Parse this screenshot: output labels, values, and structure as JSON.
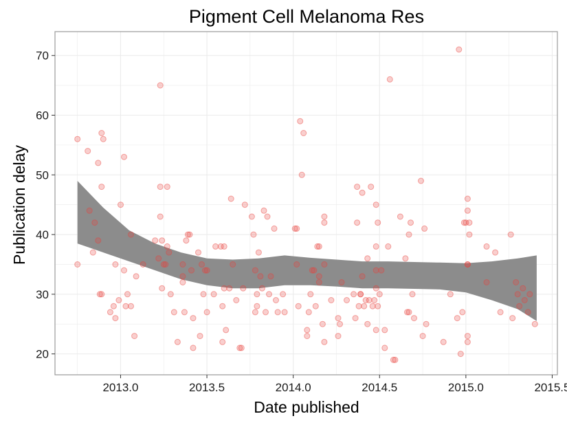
{
  "chart_data": {
    "type": "scatter",
    "title": "Pigment Cell Melanoma Res",
    "xlabel": "Date published",
    "ylabel": "Publication delay",
    "xlim": [
      2012.62,
      2015.53
    ],
    "ylim": [
      16.5,
      74.0
    ],
    "x_ticks": [
      2013.0,
      2013.5,
      2014.0,
      2014.5,
      2015.0,
      2015.5
    ],
    "x_tick_labels": [
      "2013.0",
      "2013.5",
      "2014.0",
      "2014.5",
      "2015.0",
      "2015.5"
    ],
    "y_ticks": [
      20,
      30,
      40,
      50,
      60,
      70
    ],
    "y_tick_labels": [
      "20",
      "30",
      "40",
      "50",
      "60",
      "70"
    ],
    "grid": true,
    "colors": {
      "point": "#e8413a",
      "band": "#8c8c8c",
      "grid": "#ebebeb",
      "border": "#9a9a9a"
    },
    "smooth_band": {
      "x": [
        2012.75,
        2012.9,
        2013.05,
        2013.2,
        2013.35,
        2013.5,
        2013.65,
        2013.8,
        2013.95,
        2014.1,
        2014.25,
        2014.4,
        2014.55,
        2014.7,
        2014.85,
        2015.0,
        2015.15,
        2015.3,
        2015.41
      ],
      "upper": [
        49.0,
        44.5,
        40.7,
        38.5,
        37.0,
        36.0,
        35.8,
        36.0,
        36.5,
        36.1,
        35.8,
        35.5,
        35.5,
        35.4,
        35.3,
        35.2,
        35.5,
        36.0,
        36.5
      ],
      "lower": [
        38.5,
        37.0,
        35.5,
        34.0,
        32.5,
        31.5,
        31.0,
        31.0,
        31.5,
        31.5,
        31.3,
        31.0,
        31.0,
        30.9,
        30.8,
        30.3,
        29.0,
        27.5,
        25.5
      ]
    },
    "points": [
      [
        2012.75,
        56
      ],
      [
        2012.75,
        35
      ],
      [
        2012.81,
        54
      ],
      [
        2012.82,
        44
      ],
      [
        2012.84,
        37
      ],
      [
        2012.85,
        42
      ],
      [
        2012.87,
        39
      ],
      [
        2012.87,
        52
      ],
      [
        2012.88,
        30
      ],
      [
        2012.89,
        57
      ],
      [
        2012.89,
        30
      ],
      [
        2012.9,
        56
      ],
      [
        2012.89,
        48
      ],
      [
        2012.94,
        27
      ],
      [
        2012.96,
        28
      ],
      [
        2012.97,
        26
      ],
      [
        2012.97,
        35
      ],
      [
        2012.99,
        29
      ],
      [
        2013.0,
        45
      ],
      [
        2013.02,
        53
      ],
      [
        2013.02,
        34
      ],
      [
        2013.03,
        28
      ],
      [
        2013.04,
        30
      ],
      [
        2013.06,
        40
      ],
      [
        2013.06,
        28
      ],
      [
        2013.08,
        23
      ],
      [
        2013.09,
        33
      ],
      [
        2013.13,
        35
      ],
      [
        2013.2,
        39
      ],
      [
        2013.22,
        36
      ],
      [
        2013.23,
        48
      ],
      [
        2013.23,
        43
      ],
      [
        2013.23,
        65
      ],
      [
        2013.24,
        39
      ],
      [
        2013.24,
        31
      ],
      [
        2013.25,
        35
      ],
      [
        2013.26,
        35
      ],
      [
        2013.27,
        48
      ],
      [
        2013.27,
        38
      ],
      [
        2013.28,
        37
      ],
      [
        2013.29,
        30
      ],
      [
        2013.31,
        27
      ],
      [
        2013.33,
        22
      ],
      [
        2013.36,
        35
      ],
      [
        2013.36,
        33
      ],
      [
        2013.36,
        32
      ],
      [
        2013.37,
        27
      ],
      [
        2013.38,
        39
      ],
      [
        2013.39,
        40
      ],
      [
        2013.4,
        40
      ],
      [
        2013.41,
        34
      ],
      [
        2013.42,
        21
      ],
      [
        2013.42,
        26
      ],
      [
        2013.45,
        37
      ],
      [
        2013.46,
        23
      ],
      [
        2013.47,
        35
      ],
      [
        2013.48,
        30
      ],
      [
        2013.49,
        34
      ],
      [
        2013.5,
        27
      ],
      [
        2013.5,
        34
      ],
      [
        2013.54,
        30
      ],
      [
        2013.55,
        38
      ],
      [
        2013.58,
        38
      ],
      [
        2013.59,
        28
      ],
      [
        2013.59,
        22
      ],
      [
        2013.6,
        38
      ],
      [
        2013.6,
        31
      ],
      [
        2013.61,
        24
      ],
      [
        2013.63,
        31
      ],
      [
        2013.64,
        46
      ],
      [
        2013.65,
        35
      ],
      [
        2013.67,
        29
      ],
      [
        2013.69,
        21
      ],
      [
        2013.7,
        21
      ],
      [
        2013.71,
        31
      ],
      [
        2013.72,
        45
      ],
      [
        2013.76,
        43
      ],
      [
        2013.77,
        40
      ],
      [
        2013.78,
        34
      ],
      [
        2013.78,
        27
      ],
      [
        2013.79,
        30
      ],
      [
        2013.79,
        28
      ],
      [
        2013.8,
        37
      ],
      [
        2013.81,
        33
      ],
      [
        2013.82,
        31
      ],
      [
        2013.83,
        44
      ],
      [
        2013.84,
        27
      ],
      [
        2013.85,
        43
      ],
      [
        2013.86,
        30
      ],
      [
        2013.87,
        33
      ],
      [
        2013.89,
        41
      ],
      [
        2013.9,
        29
      ],
      [
        2013.91,
        27
      ],
      [
        2013.94,
        30
      ],
      [
        2013.95,
        27
      ],
      [
        2014.01,
        41
      ],
      [
        2014.02,
        41
      ],
      [
        2014.02,
        35
      ],
      [
        2014.03,
        28
      ],
      [
        2014.04,
        59
      ],
      [
        2014.05,
        50
      ],
      [
        2014.06,
        57
      ],
      [
        2014.08,
        24
      ],
      [
        2014.08,
        23
      ],
      [
        2014.09,
        27
      ],
      [
        2014.1,
        30
      ],
      [
        2014.11,
        34
      ],
      [
        2014.12,
        34
      ],
      [
        2014.13,
        28
      ],
      [
        2014.14,
        38
      ],
      [
        2014.15,
        38
      ],
      [
        2014.15,
        33
      ],
      [
        2014.15,
        32
      ],
      [
        2014.17,
        25
      ],
      [
        2014.18,
        35
      ],
      [
        2014.18,
        43
      ],
      [
        2014.18,
        42
      ],
      [
        2014.18,
        22
      ],
      [
        2014.22,
        29
      ],
      [
        2014.26,
        26
      ],
      [
        2014.26,
        23
      ],
      [
        2014.27,
        25
      ],
      [
        2014.28,
        32
      ],
      [
        2014.31,
        29
      ],
      [
        2014.35,
        30
      ],
      [
        2014.36,
        26
      ],
      [
        2014.37,
        48
      ],
      [
        2014.37,
        42
      ],
      [
        2014.38,
        28
      ],
      [
        2014.39,
        30
      ],
      [
        2014.39,
        30
      ],
      [
        2014.4,
        47
      ],
      [
        2014.4,
        33
      ],
      [
        2014.41,
        28
      ],
      [
        2014.42,
        29
      ],
      [
        2014.43,
        36
      ],
      [
        2014.43,
        25
      ],
      [
        2014.44,
        29
      ],
      [
        2014.45,
        48
      ],
      [
        2014.46,
        28
      ],
      [
        2014.47,
        29
      ],
      [
        2014.48,
        45
      ],
      [
        2014.48,
        38
      ],
      [
        2014.48,
        34
      ],
      [
        2014.48,
        31
      ],
      [
        2014.48,
        24
      ],
      [
        2014.49,
        28
      ],
      [
        2014.49,
        42
      ],
      [
        2014.5,
        30
      ],
      [
        2014.51,
        34
      ],
      [
        2014.53,
        21
      ],
      [
        2014.53,
        24
      ],
      [
        2014.55,
        38
      ],
      [
        2014.56,
        66
      ],
      [
        2014.58,
        19
      ],
      [
        2014.59,
        19
      ],
      [
        2014.62,
        43
      ],
      [
        2014.65,
        36
      ],
      [
        2014.66,
        27
      ],
      [
        2014.67,
        27
      ],
      [
        2014.67,
        40
      ],
      [
        2014.68,
        42
      ],
      [
        2014.69,
        30
      ],
      [
        2014.7,
        26
      ],
      [
        2014.74,
        49
      ],
      [
        2014.75,
        23
      ],
      [
        2014.76,
        41
      ],
      [
        2014.77,
        25
      ],
      [
        2014.87,
        22
      ],
      [
        2014.91,
        30
      ],
      [
        2014.95,
        26
      ],
      [
        2014.96,
        71
      ],
      [
        2014.97,
        20
      ],
      [
        2014.98,
        27
      ],
      [
        2014.99,
        42
      ],
      [
        2015.0,
        42
      ],
      [
        2015.01,
        46
      ],
      [
        2015.01,
        35
      ],
      [
        2015.01,
        35
      ],
      [
        2015.01,
        44
      ],
      [
        2015.02,
        42
      ],
      [
        2015.02,
        40
      ],
      [
        2015.01,
        22
      ],
      [
        2015.01,
        23
      ],
      [
        2015.12,
        38
      ],
      [
        2015.12,
        32
      ],
      [
        2015.17,
        37
      ],
      [
        2015.2,
        27
      ],
      [
        2015.26,
        40
      ],
      [
        2015.27,
        26
      ],
      [
        2015.29,
        32
      ],
      [
        2015.3,
        30
      ],
      [
        2015.31,
        28
      ],
      [
        2015.33,
        31
      ],
      [
        2015.34,
        29
      ],
      [
        2015.36,
        27
      ],
      [
        2015.37,
        30
      ],
      [
        2015.4,
        25
      ]
    ]
  }
}
